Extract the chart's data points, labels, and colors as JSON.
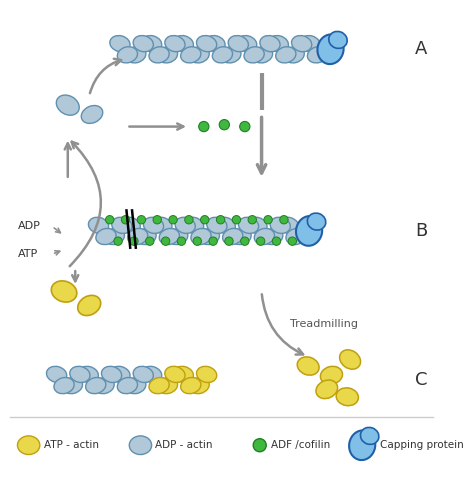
{
  "bg_color": "#ffffff",
  "adp_actin_color": "#b0c8d8",
  "adp_actin_edge": "#6090b0",
  "atp_actin_color": "#e8d84a",
  "atp_actin_edge": "#c0a010",
  "cofilin_color": "#40b840",
  "cofilin_edge": "#208020",
  "capping_color": "#80c0e8",
  "capping_edge": "#2060a8",
  "arrow_color": "#909090",
  "label_A": "A",
  "label_B": "B",
  "label_C": "C",
  "text_ADP": "ADP",
  "text_ATP": "ATP",
  "text_treadmilling": "Treadmilling",
  "legend_items": [
    "ATP - actin",
    "ADP - actin",
    "ADF /cofilin",
    "Capping protein"
  ],
  "fig_w": 4.74,
  "fig_h": 4.87,
  "dpi": 100
}
